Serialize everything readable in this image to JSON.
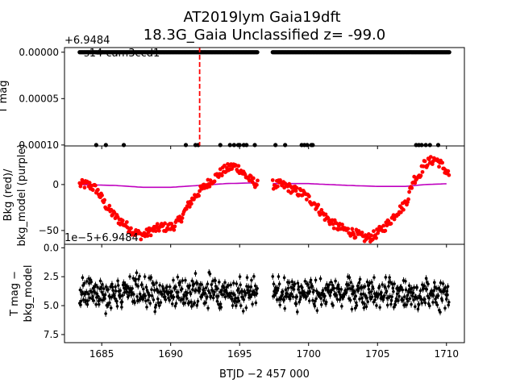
{
  "title_line1": "AT2019lym  Gaia19dft",
  "title_line2": "18.3G_Gaia Unclassified z= -99.0",
  "xlabel": "BTJD −2 457 000",
  "x_ticks": [
    1685,
    1690,
    1695,
    1700,
    1705,
    1710
  ],
  "xlim": [
    1682.3,
    1711.3
  ],
  "chart_data": [
    {
      "type": "scatter",
      "panel": "top",
      "ylabel": "T mag",
      "offset_text": "+6.9484",
      "annotation": "s14 cam3ccd1",
      "ylim": [
        -5e-06,
        0.000101
      ],
      "inverted": true,
      "y_ticks": [
        "0.00000",
        "0.00005",
        "0.00010"
      ],
      "y_tick_values": [
        0.0,
        5e-05,
        0.0001
      ],
      "vline_x": 1692.1,
      "vline_color": "#ff0000",
      "point_color": "#000000",
      "segments_at_zero": [
        [
          1683.4,
          1696.3
        ],
        [
          1697.4,
          1710.2
        ]
      ],
      "outliers_x": [
        1684.6,
        1685.3,
        1686.6,
        1691.1,
        1691.8,
        1692.0,
        1693.6,
        1694.3,
        1694.6,
        1694.9,
        1695.0,
        1695.3,
        1695.5,
        1696.1,
        1697.6,
        1698.3,
        1699.5,
        1699.7,
        1699.9,
        1700.2,
        1700.3,
        1707.8,
        1708.0,
        1708.2,
        1708.5,
        1708.8,
        1709.4
      ],
      "outlier_y": 0.0001
    },
    {
      "type": "scatter",
      "panel": "middle",
      "ylabel_line1": "Bkg (red)/",
      "ylabel_line2": "bkg_model (purple)",
      "ylim": [
        -65,
        42
      ],
      "y_ticks": [
        "0",
        "−50"
      ],
      "y_tick_values": [
        0,
        -50
      ],
      "series": [
        {
          "color": "#ff0000",
          "x": [
            1683.4,
            1684.0,
            1684.6,
            1685.0,
            1685.4,
            1685.8,
            1686.2,
            1686.6,
            1687.0,
            1687.4,
            1687.8,
            1688.2,
            1688.6,
            1689.0,
            1689.4,
            1689.8,
            1690.2,
            1690.6,
            1691.0,
            1691.4,
            1691.8,
            1692.2,
            1692.6,
            1693.0,
            1693.4,
            1693.8,
            1694.2,
            1694.6,
            1695.0,
            1695.4,
            1695.8,
            1696.3,
            1697.4,
            1697.9,
            1698.4,
            1698.8,
            1699.2,
            1699.6,
            1700.0,
            1700.4,
            1700.8,
            1701.2,
            1701.6,
            1702.0,
            1702.4,
            1702.8,
            1703.2,
            1703.6,
            1704.0,
            1704.4,
            1704.8,
            1705.2,
            1705.6,
            1706.0,
            1706.4,
            1706.8,
            1707.2,
            1707.6,
            1708.0,
            1708.4,
            1708.8,
            1709.2,
            1709.6,
            1710.2
          ],
          "y": [
            0,
            0,
            -5,
            -15,
            -25,
            -32,
            -38,
            -42,
            -48,
            -52,
            -55,
            -54,
            -50,
            -48,
            -46,
            -47,
            -45,
            -40,
            -30,
            -20,
            -12,
            -6,
            0,
            5,
            10,
            15,
            18,
            20,
            17,
            10,
            5,
            0,
            0,
            0,
            -2,
            -5,
            -8,
            -10,
            -15,
            -20,
            -28,
            -35,
            -40,
            -45,
            -48,
            -50,
            -52,
            -55,
            -58,
            -58,
            -55,
            -50,
            -45,
            -38,
            -30,
            -25,
            -15,
            5,
            10,
            22,
            25,
            28,
            22,
            10
          ]
        },
        {
          "color": "#bf00bf",
          "x": [
            1683.4,
            1686.0,
            1688.0,
            1690.0,
            1692.0,
            1694.0,
            1696.3,
            1697.4,
            1700.0,
            1703.0,
            1705.0,
            1707.0,
            1708.5,
            1710.2
          ],
          "y": [
            0,
            -1,
            -3,
            -3,
            -1,
            1,
            2,
            1,
            1,
            -1,
            -2,
            -2,
            0,
            1
          ]
        }
      ]
    },
    {
      "type": "scatter",
      "panel": "bottom",
      "ylabel_line1": "T mag −",
      "ylabel_line2": "bkg_model",
      "offset_text": "1e−5+6.9484",
      "ylim": [
        8.2,
        -0.3
      ],
      "inverted": true,
      "y_ticks": [
        "0.0",
        "2.5",
        "5.0",
        "7.5"
      ],
      "y_tick_values": [
        0.0,
        2.5,
        5.0,
        7.5
      ],
      "point_color": "#000000",
      "segments": [
        [
          1683.4,
          1696.3
        ],
        [
          1697.4,
          1710.2
        ]
      ],
      "center_y": 3.9,
      "spread": 1.3
    }
  ]
}
